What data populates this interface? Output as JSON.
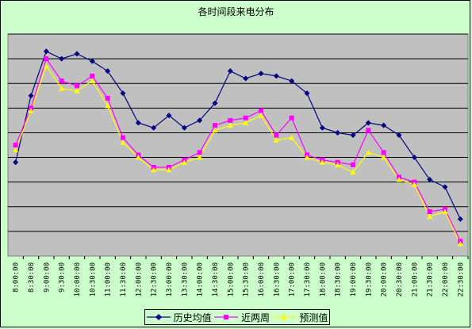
{
  "chart_data": {
    "type": "line",
    "title": "各时间段来电分布",
    "categories": [
      "8:00:00",
      "8:30:00",
      "9:00:00",
      "9:30:00",
      "10:00:00",
      "10:30:00",
      "11:00:00",
      "11:30:00",
      "12:00:00",
      "12:30:00",
      "13:00:00",
      "13:30:00",
      "14:00:00",
      "14:30:00",
      "15:00:00",
      "15:30:00",
      "16:00:00",
      "16:30:00",
      "17:00:00",
      "17:30:00",
      "18:00:00",
      "18:30:00",
      "19:00:00",
      "19:30:00",
      "20:00:00",
      "20:30:00",
      "21:00:00",
      "21:30:00",
      "22:00:00",
      "22:30:00"
    ],
    "ylim": [
      0,
      9
    ],
    "grid": true,
    "legend_position": "bottom",
    "series": [
      {
        "name": "历史均值",
        "color": "#000080",
        "marker": "diamond",
        "values": [
          3.8,
          6.5,
          8.3,
          8.0,
          8.2,
          7.9,
          7.5,
          6.6,
          5.4,
          5.2,
          5.7,
          5.2,
          5.5,
          6.2,
          7.5,
          7.2,
          7.4,
          7.3,
          7.1,
          6.6,
          5.2,
          5.0,
          4.9,
          5.4,
          5.3,
          4.9,
          4.0,
          3.1,
          2.8,
          1.5
        ]
      },
      {
        "name": "近两周",
        "color": "#ff00ff",
        "marker": "square",
        "values": [
          4.5,
          6.0,
          8.0,
          7.1,
          6.9,
          7.3,
          6.4,
          4.8,
          4.1,
          3.6,
          3.6,
          3.9,
          4.2,
          5.3,
          5.5,
          5.6,
          5.9,
          4.9,
          5.6,
          4.1,
          3.9,
          3.8,
          3.7,
          5.1,
          4.2,
          3.2,
          3.0,
          1.8,
          1.9,
          0.6
        ]
      },
      {
        "name": "预测值",
        "color": "#ffff00",
        "marker": "triangle",
        "values": [
          4.3,
          5.9,
          7.7,
          6.8,
          6.7,
          7.1,
          6.1,
          4.6,
          4.0,
          3.5,
          3.5,
          3.8,
          4.0,
          5.1,
          5.3,
          5.4,
          5.7,
          4.7,
          4.8,
          4.0,
          3.8,
          3.7,
          3.4,
          4.2,
          4.0,
          3.1,
          2.9,
          1.6,
          1.8,
          0.5
        ]
      }
    ]
  }
}
